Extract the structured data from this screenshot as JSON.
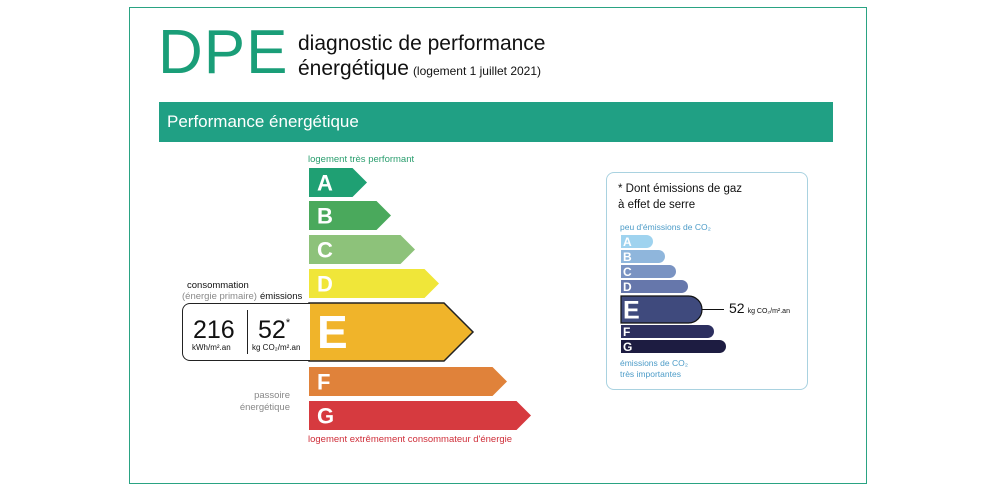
{
  "header": {
    "logo": "DPE",
    "title_line1": "diagnostic de performance",
    "title_line2": "énergétique",
    "subtitle": "(logement 1 juillet 2021)"
  },
  "section": {
    "title": "Performance énergétique"
  },
  "energy_scale": {
    "top_note": "logement très performant",
    "bottom_note": "logement extrêmement consommateur d'énergie",
    "passoire_line1": "passoire",
    "passoire_line2": "énergétique",
    "classes": [
      {
        "letter": "A",
        "color": "#1fa073"
      },
      {
        "letter": "B",
        "color": "#4aa95c"
      },
      {
        "letter": "C",
        "color": "#8dc27a"
      },
      {
        "letter": "D",
        "color": "#f0e639"
      },
      {
        "letter": "E",
        "color": "#f0b42a"
      },
      {
        "letter": "F",
        "color": "#e0823a"
      },
      {
        "letter": "G",
        "color": "#d63a3f"
      }
    ],
    "current_class": "E",
    "consumption": {
      "label": "consommation",
      "sublabel": "(énergie primaire)",
      "value": "216",
      "unit": "kWh/m².an"
    },
    "emissions": {
      "label": "émissions",
      "value": "52",
      "asterisk": "*",
      "unit": "kg CO₂/m².an"
    }
  },
  "ges_panel": {
    "title_line1": "* Dont émissions de gaz",
    "title_line2": "à effet de serre",
    "top_note": "peu d'émissions de CO₂",
    "bottom_note_line1": "émissions de CO₂",
    "bottom_note_line2": "très importantes",
    "classes": [
      {
        "letter": "A",
        "color": "#9fd3ef"
      },
      {
        "letter": "B",
        "color": "#8fb6dc"
      },
      {
        "letter": "C",
        "color": "#7a93c2"
      },
      {
        "letter": "D",
        "color": "#6677ab"
      },
      {
        "letter": "E",
        "color": "#3f4a7d"
      },
      {
        "letter": "F",
        "color": "#2c2f5f"
      },
      {
        "letter": "G",
        "color": "#1d1c41"
      }
    ],
    "current_class": "E",
    "value": "52",
    "unit": "kg CO₂/m².an"
  }
}
